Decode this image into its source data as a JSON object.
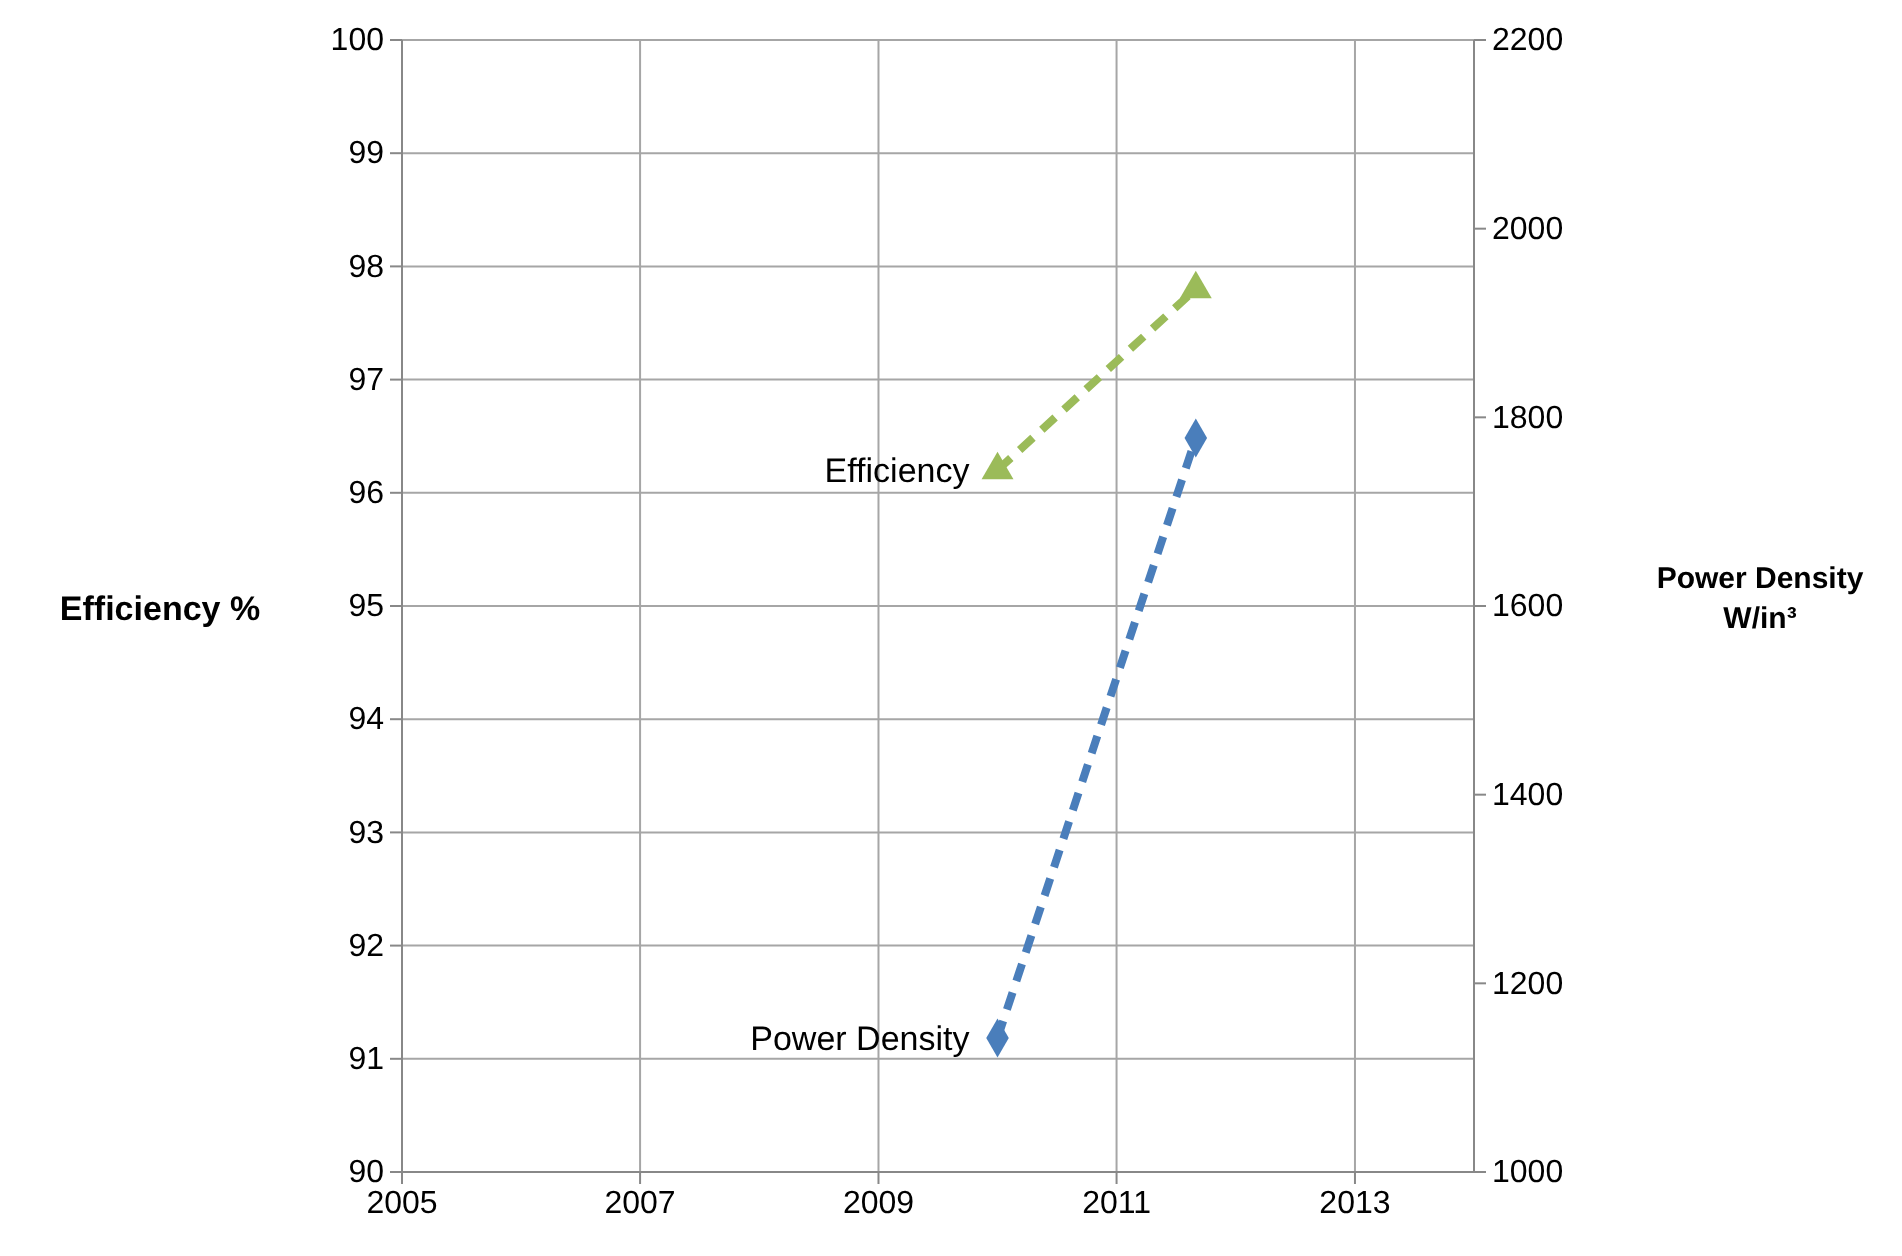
{
  "chart_data": {
    "type": "line",
    "ylabel": "Efficiency %",
    "y2label": "Power Density W/in³",
    "xlim": [
      "2005",
      "2014"
    ],
    "xticks": [
      "2005",
      "2007",
      "2009",
      "2011",
      "2013"
    ],
    "ylim": [
      90,
      100
    ],
    "yticks": [
      90,
      91,
      92,
      93,
      94,
      95,
      96,
      97,
      98,
      99,
      100
    ],
    "y2lim": [
      1000,
      2200
    ],
    "y2ticks": [
      1000,
      1200,
      1400,
      1600,
      1800,
      2000,
      2200
    ],
    "grid": true,
    "line_style": "dashed",
    "series": [
      {
        "name": "Efficiency",
        "color": "#9bbb59",
        "marker": "triangle",
        "x": [
          "2010",
          "2011-09"
        ],
        "values": [
          96.2,
          97.8
        ]
      },
      {
        "name": "Power Density",
        "color": "#4a7ebb",
        "marker": "diamond",
        "axis": "y2",
        "x": [
          "2010",
          "2011-09"
        ],
        "values": [
          1142,
          1778
        ]
      }
    ]
  }
}
